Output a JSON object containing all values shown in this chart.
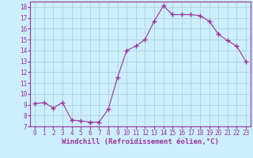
{
  "x": [
    0,
    1,
    2,
    3,
    4,
    5,
    6,
    7,
    8,
    9,
    10,
    11,
    12,
    13,
    14,
    15,
    16,
    17,
    18,
    19,
    20,
    21,
    22,
    23
  ],
  "y": [
    9.1,
    9.2,
    8.7,
    9.2,
    7.6,
    7.5,
    7.4,
    7.4,
    8.6,
    11.5,
    14.0,
    14.4,
    15.0,
    16.7,
    18.1,
    17.3,
    17.3,
    17.3,
    17.2,
    16.7,
    15.5,
    14.9,
    14.4,
    13.0
  ],
  "line_color": "#993399",
  "marker": "+",
  "marker_size": 4,
  "bg_color": "#cceeff",
  "grid_color": "#aacccc",
  "xlabel": "Windchill (Refroidissement éolien,°C)",
  "xlim": [
    -0.5,
    23.5
  ],
  "ylim": [
    7,
    18.5
  ],
  "yticks": [
    7,
    8,
    9,
    10,
    11,
    12,
    13,
    14,
    15,
    16,
    17,
    18
  ],
  "xticks": [
    0,
    1,
    2,
    3,
    4,
    5,
    6,
    7,
    8,
    9,
    10,
    11,
    12,
    13,
    14,
    15,
    16,
    17,
    18,
    19,
    20,
    21,
    22,
    23
  ],
  "tick_fontsize": 5.5,
  "xlabel_fontsize": 6.5,
  "axis_color": "#993399",
  "spine_color": "#993399",
  "lw": 0.8
}
